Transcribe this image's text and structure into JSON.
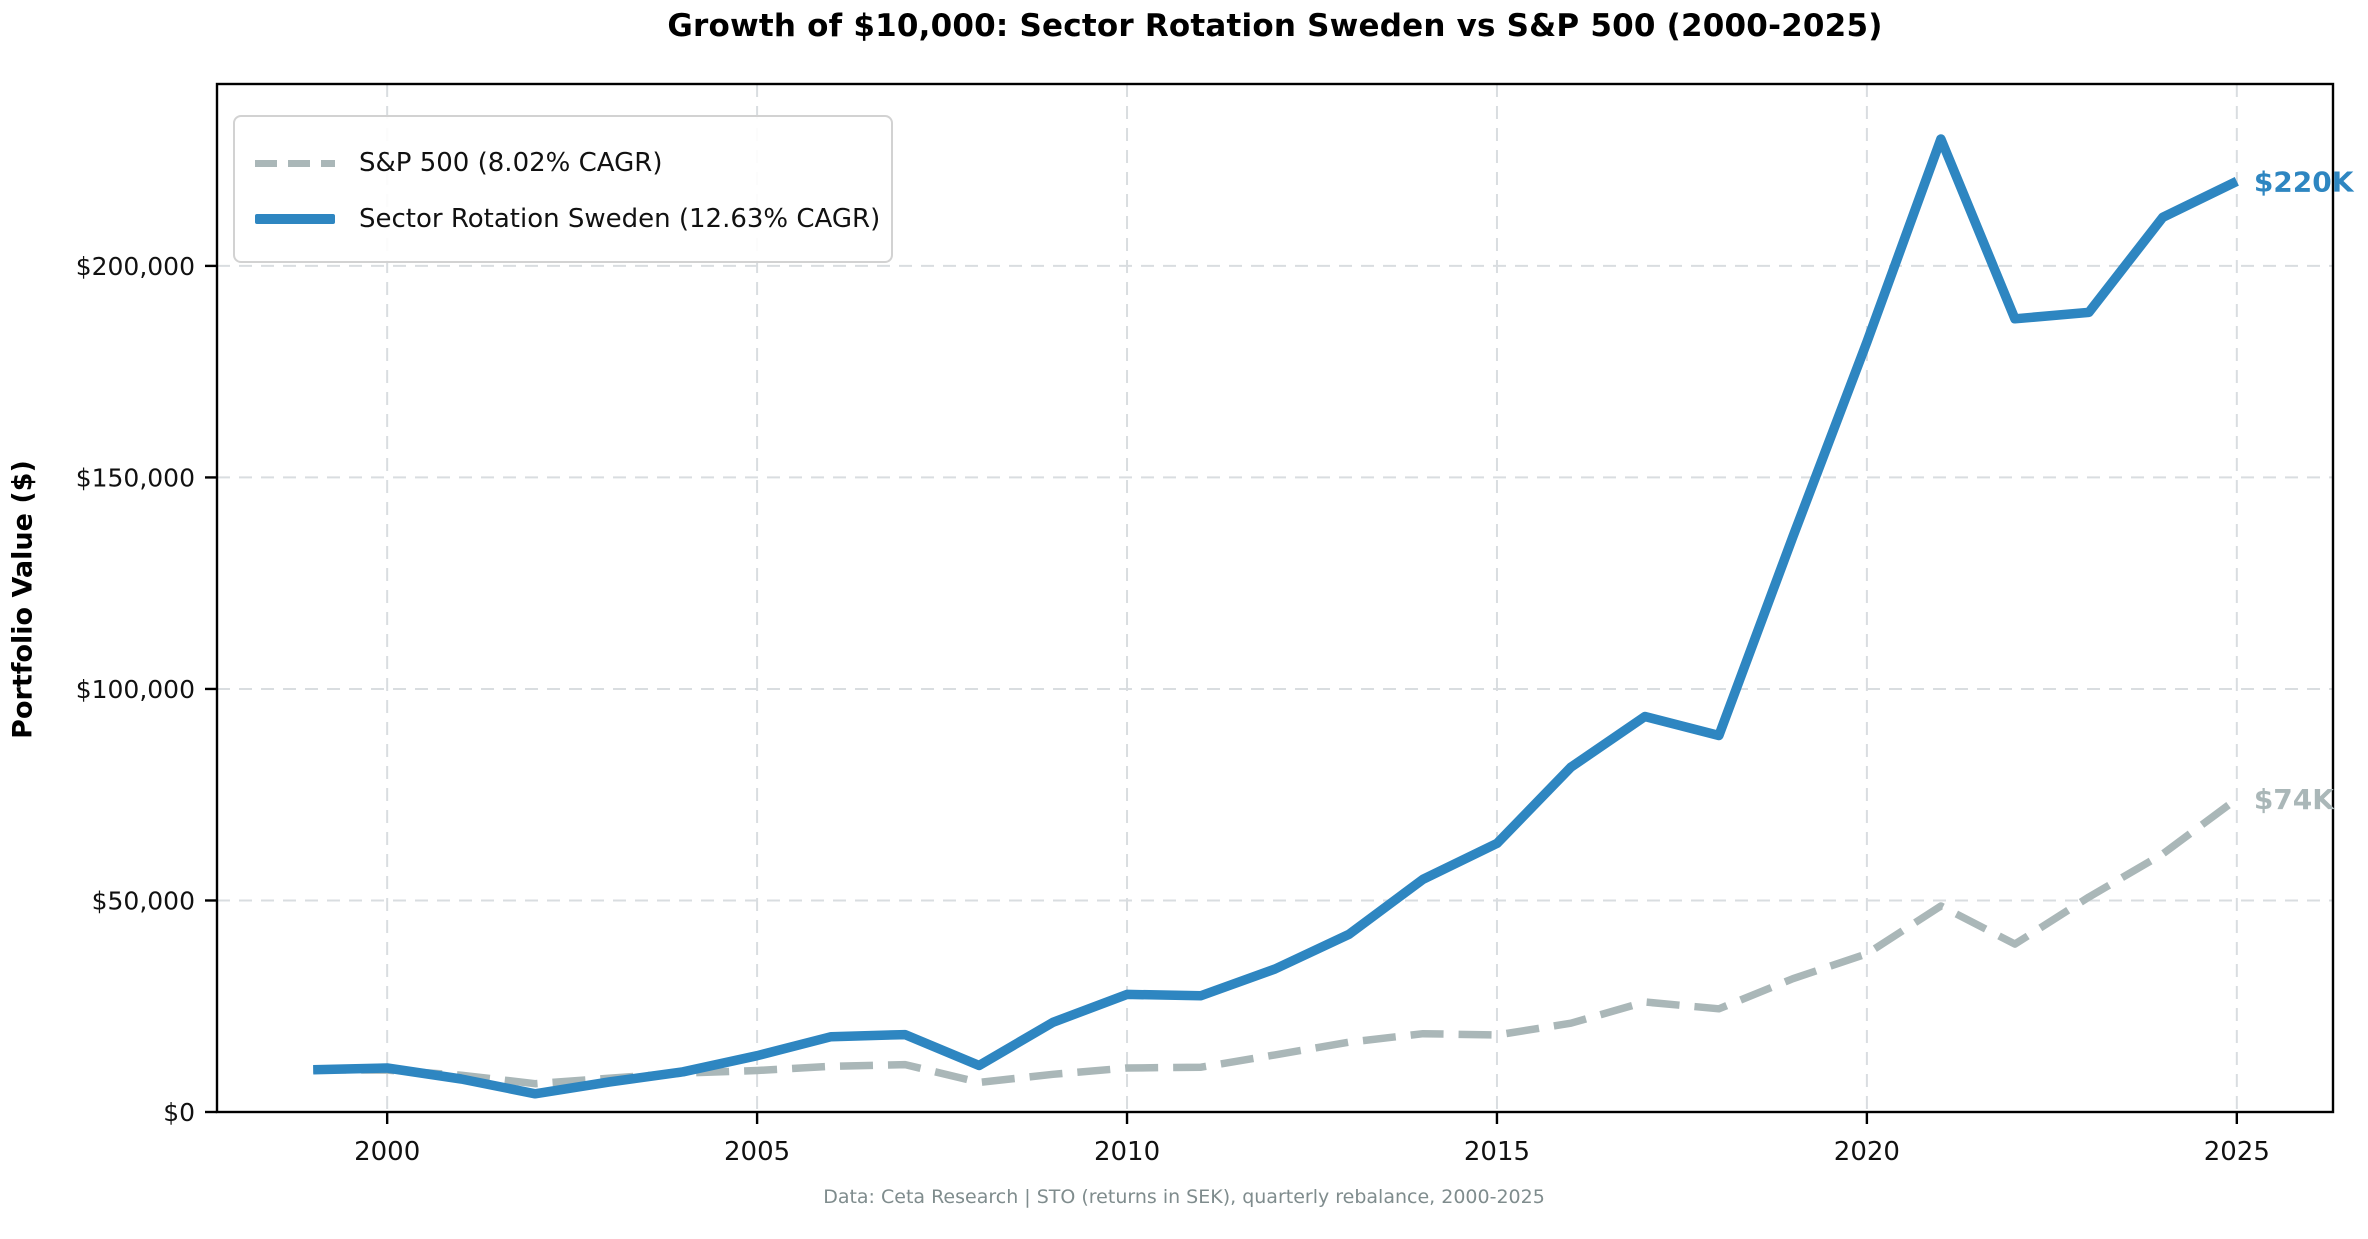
{
  "chart_data": {
    "type": "line",
    "title": "Growth of $10,000: Sector Rotation Sweden vs S&P 500 (2000-2025)",
    "ylabel": "Portfolio Value ($)",
    "xlabel": "",
    "footer": "Data: Ceta Research | STO (returns in SEK), quarterly rebalance, 2000-2025",
    "x": [
      1999,
      2000,
      2001,
      2002,
      2003,
      2004,
      2005,
      2006,
      2007,
      2008,
      2009,
      2010,
      2011,
      2012,
      2013,
      2014,
      2015,
      2016,
      2017,
      2018,
      2019,
      2020,
      2021,
      2022,
      2023,
      2024,
      2025
    ],
    "series": [
      {
        "name": "S&P 500 (8.02% CAGR)",
        "color": "#aab7b8",
        "style": "dashed",
        "end_label": "$74K",
        "values": [
          10000,
          9900,
          8700,
          6700,
          8000,
          9200,
          9800,
          10800,
          11200,
          7000,
          8900,
          10400,
          10600,
          13500,
          16500,
          18500,
          18200,
          21000,
          26000,
          24400,
          31500,
          37400,
          48700,
          39700,
          50800,
          61000,
          74000
        ]
      },
      {
        "name": "Sector Rotation Sweden (12.63% CAGR)",
        "color": "#2e86c1",
        "style": "solid",
        "end_label": "$220K",
        "values": [
          10000,
          10400,
          7800,
          4300,
          7100,
          9500,
          13300,
          17800,
          18300,
          11000,
          21200,
          27800,
          27500,
          33800,
          42000,
          55000,
          63500,
          81500,
          93500,
          89000,
          136000,
          182000,
          230000,
          187500,
          189000,
          211500,
          220000
        ]
      }
    ],
    "xticks": [
      2000,
      2005,
      2010,
      2015,
      2020,
      2025
    ],
    "yticks": [
      {
        "value": 0,
        "label": "$0"
      },
      {
        "value": 50000,
        "label": "$50,000"
      },
      {
        "value": 100000,
        "label": "$100,000"
      },
      {
        "value": 150000,
        "label": "$150,000"
      },
      {
        "value": 200000,
        "label": "$200,000"
      }
    ],
    "xlim": [
      1997.7,
      2026.3
    ],
    "ylim": [
      0,
      243000
    ],
    "grid": true,
    "legend_position": "upper left",
    "colors": {
      "grid": "#d9dde0",
      "frame": "#000000",
      "tick_label": "#111111",
      "footer_text": "#7f8c8d"
    }
  }
}
